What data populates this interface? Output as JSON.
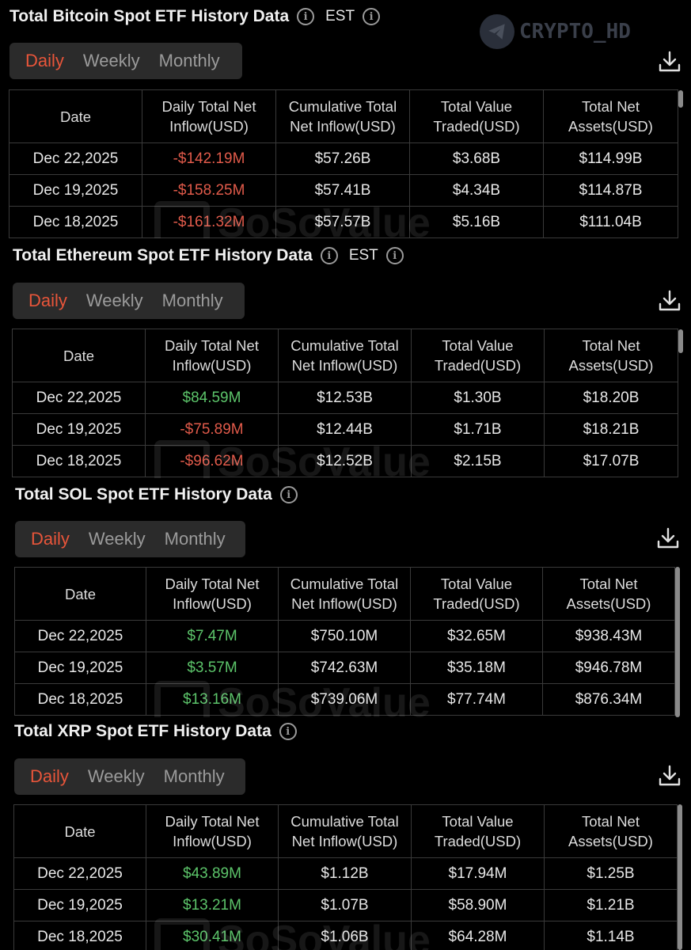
{
  "brand_watermark": "CRYPTO_HD",
  "table_watermark": "SoSoValue",
  "tabs": [
    "Daily",
    "Weekly",
    "Monthly"
  ],
  "columns": [
    "Date",
    "Daily Total Net Inflow(USD)",
    "Cumulative Total Net Inflow(USD)",
    "Total Value Traded(USD)",
    "Total Net Assets(USD)"
  ],
  "sections": [
    {
      "title": "Total Bitcoin Spot ETF History Data",
      "timezone": "EST",
      "rows": [
        {
          "date": "Dec 22,2025",
          "inflow": "-$142.19M",
          "inflow_sign": "neg",
          "cumulative": "$57.26B",
          "traded": "$3.68B",
          "assets": "$114.99B"
        },
        {
          "date": "Dec 19,2025",
          "inflow": "-$158.25M",
          "inflow_sign": "neg",
          "cumulative": "$57.41B",
          "traded": "$4.34B",
          "assets": "$114.87B"
        },
        {
          "date": "Dec 18,2025",
          "inflow": "-$161.32M",
          "inflow_sign": "neg",
          "cumulative": "$57.57B",
          "traded": "$5.16B",
          "assets": "$111.04B"
        }
      ]
    },
    {
      "title": "Total Ethereum Spot ETF History Data",
      "timezone": "EST",
      "rows": [
        {
          "date": "Dec 22,2025",
          "inflow": "$84.59M",
          "inflow_sign": "pos",
          "cumulative": "$12.53B",
          "traded": "$1.30B",
          "assets": "$18.20B"
        },
        {
          "date": "Dec 19,2025",
          "inflow": "-$75.89M",
          "inflow_sign": "neg",
          "cumulative": "$12.44B",
          "traded": "$1.71B",
          "assets": "$18.21B"
        },
        {
          "date": "Dec 18,2025",
          "inflow": "-$96.62M",
          "inflow_sign": "neg",
          "cumulative": "$12.52B",
          "traded": "$2.15B",
          "assets": "$17.07B"
        }
      ]
    },
    {
      "title": "Total SOL Spot ETF History Data",
      "timezone": "",
      "rows": [
        {
          "date": "Dec 22,2025",
          "inflow": "$7.47M",
          "inflow_sign": "pos",
          "cumulative": "$750.10M",
          "traded": "$32.65M",
          "assets": "$938.43M"
        },
        {
          "date": "Dec 19,2025",
          "inflow": "$3.57M",
          "inflow_sign": "pos",
          "cumulative": "$742.63M",
          "traded": "$35.18M",
          "assets": "$946.78M"
        },
        {
          "date": "Dec 18,2025",
          "inflow": "$13.16M",
          "inflow_sign": "pos",
          "cumulative": "$739.06M",
          "traded": "$77.74M",
          "assets": "$876.34M"
        }
      ]
    },
    {
      "title": "Total XRP Spot ETF History Data",
      "timezone": "",
      "rows": [
        {
          "date": "Dec 22,2025",
          "inflow": "$43.89M",
          "inflow_sign": "pos",
          "cumulative": "$1.12B",
          "traded": "$17.94M",
          "assets": "$1.25B"
        },
        {
          "date": "Dec 19,2025",
          "inflow": "$13.21M",
          "inflow_sign": "pos",
          "cumulative": "$1.07B",
          "traded": "$58.90M",
          "assets": "$1.21B"
        },
        {
          "date": "Dec 18,2025",
          "inflow": "$30.41M",
          "inflow_sign": "pos",
          "cumulative": "$1.06B",
          "traded": "$64.28M",
          "assets": "$1.14B"
        }
      ]
    }
  ],
  "colors": {
    "negative": "#e05a4a",
    "positive": "#5cc46a",
    "active_tab": "#e8553a"
  }
}
